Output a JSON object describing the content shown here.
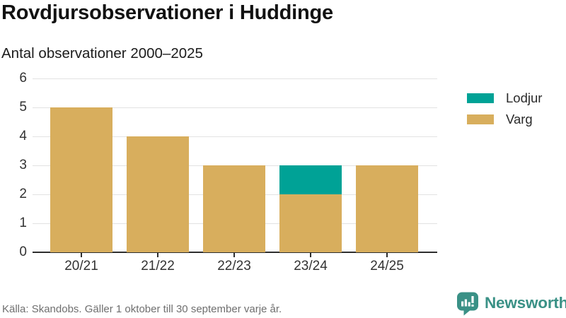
{
  "header": {
    "title": "Rovdjursobservationer i Huddinge",
    "subtitle": "Antal observationer 2000–2025"
  },
  "chart_data": {
    "type": "bar",
    "stacked": true,
    "title": "Rovdjursobservationer i Huddinge",
    "subtitle": "Antal observationer 2000–2025",
    "categories": [
      "20/21",
      "21/22",
      "22/23",
      "23/24",
      "24/25"
    ],
    "series": [
      {
        "name": "Lodjur",
        "color": "#00A296",
        "values": [
          0,
          0,
          0,
          1,
          0
        ]
      },
      {
        "name": "Varg",
        "color": "#D8AE5D",
        "values": [
          5,
          4,
          3,
          2,
          3
        ]
      }
    ],
    "xlabel": "",
    "ylabel": "",
    "ylim": [
      0,
      6
    ],
    "yticks": [
      0,
      1,
      2,
      3,
      4,
      5,
      6
    ],
    "grid": "horizontal",
    "legend_position": "right"
  },
  "footer": {
    "source": "Källa: Skandobs. Gäller 1 oktober till 30 september varje år."
  },
  "branding": {
    "name": "Newsworthy",
    "color": "#3A9186"
  }
}
